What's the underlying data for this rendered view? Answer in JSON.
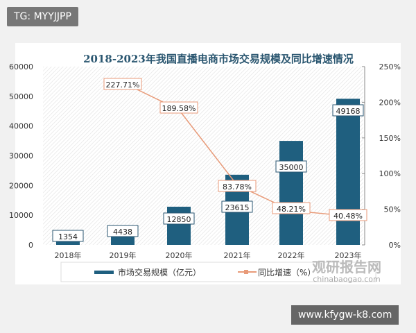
{
  "overlay": {
    "tag": "TG: MYYJJPP",
    "url": "www.kfygw-k8.com"
  },
  "watermark": {
    "cn": "观研报告网",
    "en": "chinabaogao.com"
  },
  "chart_data": {
    "type": "bar+line",
    "title": "2018-2023年我国直播电商市场交易规模及同比增速情况",
    "categories": [
      "2018年",
      "2019年",
      "2020年",
      "2021年",
      "2022年",
      "2023年"
    ],
    "series": [
      {
        "name": "市场交易规模（亿元）",
        "type": "bar",
        "axis": "left",
        "values": [
          1354,
          4438,
          12850,
          23615,
          35000,
          49168
        ],
        "labels": [
          "1354",
          "4438",
          "12850",
          "23615",
          "35000",
          "49168"
        ],
        "color": "#1f5f7f"
      },
      {
        "name": "同比增速（%）",
        "type": "line",
        "axis": "right",
        "values": [
          null,
          227.71,
          189.58,
          83.78,
          48.21,
          40.48
        ],
        "labels": [
          "",
          "227.71%",
          "189.58%",
          "83.78%",
          "48.21%",
          "40.48%"
        ],
        "color": "#e89a78"
      }
    ],
    "left_axis": {
      "range": [
        0,
        60000
      ],
      "ticks": [
        "0",
        "10000",
        "20000",
        "30000",
        "40000",
        "50000",
        "60000"
      ]
    },
    "right_axis": {
      "range": [
        0,
        250
      ],
      "ticks": [
        "0%",
        "50%",
        "100%",
        "150%",
        "200%",
        "250%"
      ]
    },
    "legend": "bottom"
  }
}
